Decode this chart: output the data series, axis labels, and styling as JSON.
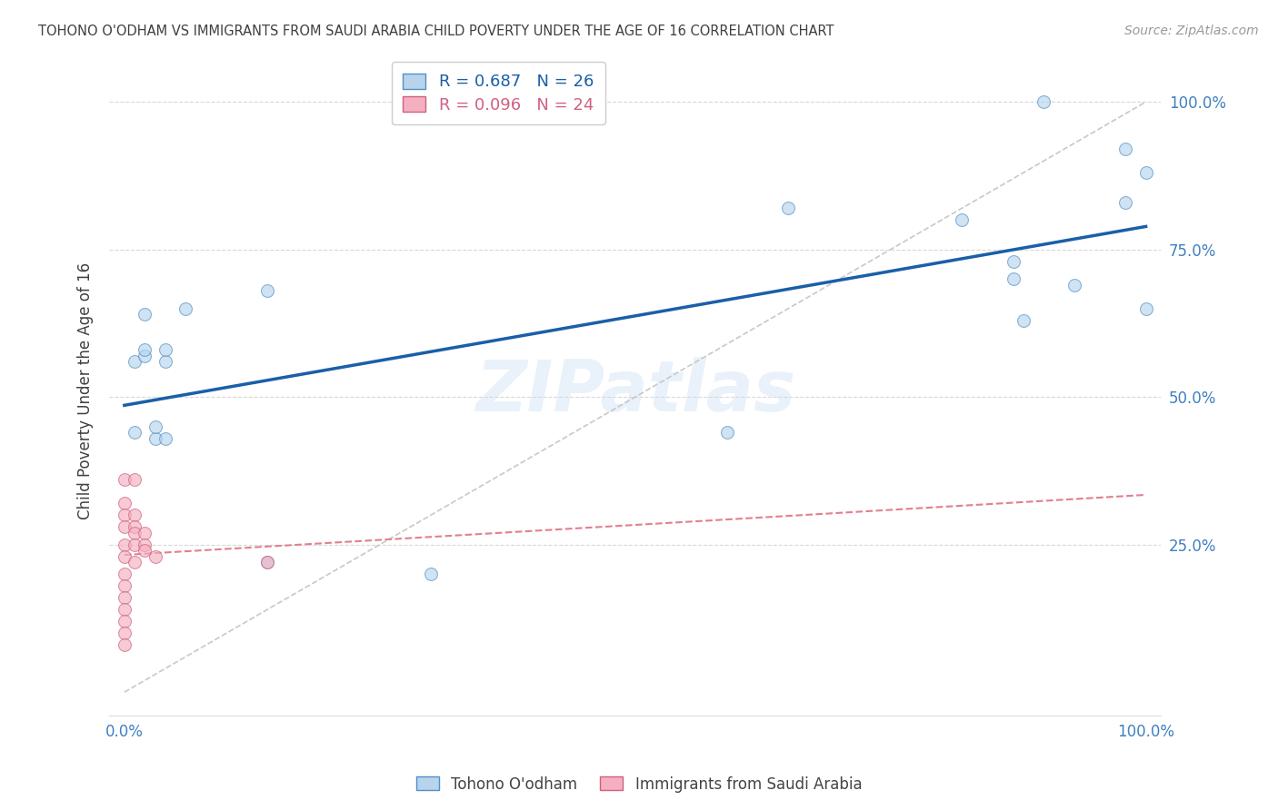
{
  "title": "TOHONO O'ODHAM VS IMMIGRANTS FROM SAUDI ARABIA CHILD POVERTY UNDER THE AGE OF 16 CORRELATION CHART",
  "source": "Source: ZipAtlas.com",
  "ylabel": "Child Poverty Under the Age of 16",
  "watermark": "ZIPatlas",
  "legend1_label": "R = 0.687   N = 26",
  "legend2_label": "R = 0.096   N = 24",
  "legend1_series": "Tohono O'odham",
  "legend2_series": "Immigrants from Saudi Arabia",
  "blue_fill": "#b8d4ed",
  "blue_edge": "#5090c8",
  "pink_fill": "#f4b0c0",
  "pink_edge": "#d06080",
  "blue_line_color": "#1a5fa8",
  "pink_line_color": "#e08090",
  "blue_x": [
    0.01,
    0.01,
    0.02,
    0.02,
    0.02,
    0.03,
    0.03,
    0.04,
    0.04,
    0.04,
    0.06,
    0.14,
    0.14,
    0.3,
    0.59,
    0.65,
    0.82,
    0.87,
    0.87,
    0.88,
    0.9,
    0.93,
    0.98,
    0.98,
    1.0,
    1.0
  ],
  "blue_y": [
    0.44,
    0.56,
    0.57,
    0.58,
    0.64,
    0.43,
    0.45,
    0.43,
    0.56,
    0.58,
    0.65,
    0.22,
    0.68,
    0.2,
    0.44,
    0.82,
    0.8,
    0.7,
    0.73,
    0.63,
    1.0,
    0.69,
    0.83,
    0.92,
    0.88,
    0.65
  ],
  "pink_x": [
    0.0,
    0.0,
    0.0,
    0.0,
    0.0,
    0.0,
    0.0,
    0.0,
    0.0,
    0.0,
    0.0,
    0.0,
    0.0,
    0.01,
    0.01,
    0.01,
    0.01,
    0.01,
    0.01,
    0.02,
    0.02,
    0.02,
    0.03,
    0.14
  ],
  "pink_y": [
    0.36,
    0.32,
    0.3,
    0.28,
    0.25,
    0.23,
    0.2,
    0.18,
    0.16,
    0.14,
    0.12,
    0.1,
    0.08,
    0.36,
    0.3,
    0.28,
    0.27,
    0.25,
    0.22,
    0.27,
    0.25,
    0.24,
    0.23,
    0.22
  ],
  "marker_size": 100,
  "alpha": 0.65,
  "background_color": "#ffffff",
  "grid_color": "#d8d8d8",
  "ref_line_color": "#c8c8c8",
  "tick_color": "#4080c0",
  "title_color": "#404040",
  "ylabel_color": "#404040"
}
